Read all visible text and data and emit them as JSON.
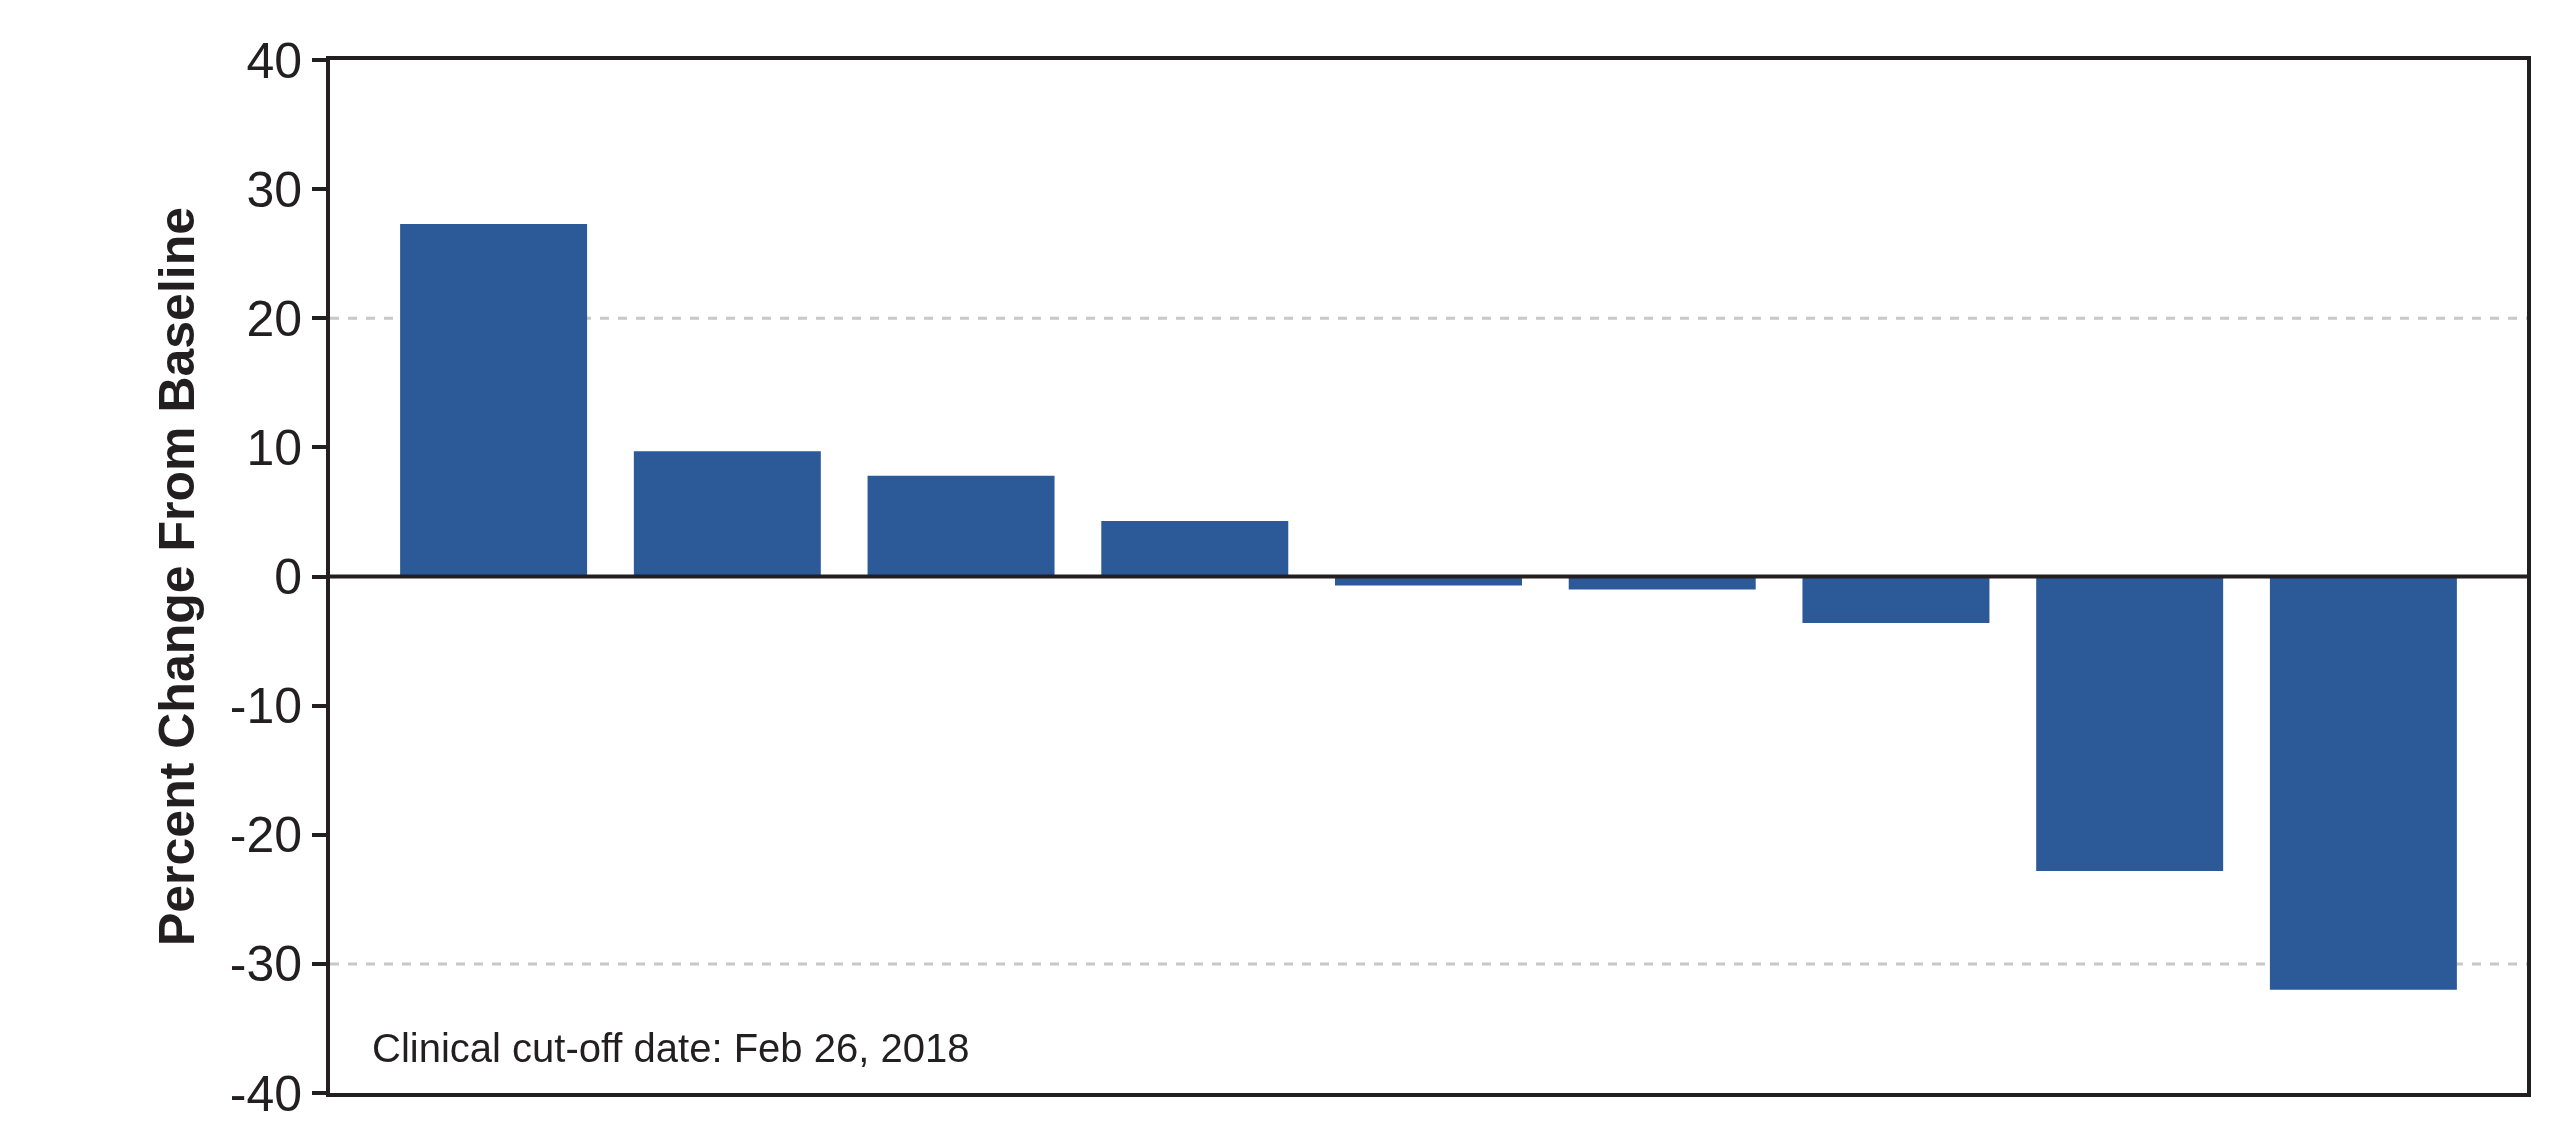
{
  "chart_data": {
    "type": "bar",
    "ylabel": "Percent Change From Baseline",
    "categories": [
      null,
      null,
      null,
      null,
      null,
      null,
      null,
      null,
      null
    ],
    "values": [
      27.3,
      9.7,
      7.8,
      4.3,
      -0.7,
      -1.0,
      -3.6,
      -22.8,
      -32.0
    ],
    "color": "#2c5a98",
    "ylim": [
      -40,
      40
    ],
    "yticks": [
      -40,
      -30,
      -20,
      -10,
      0,
      10,
      20,
      30,
      40
    ],
    "grid": false,
    "legend": false,
    "ref_lines": [
      {
        "axis": "y",
        "value": 20,
        "label": null,
        "color": "#c8c8c8",
        "line_style": "dashed"
      },
      {
        "axis": "y",
        "value": -30,
        "label": null,
        "color": "#c8c8c8",
        "line_style": "dashed"
      }
    ],
    "annotations": [
      "Clinical cut-off date: Feb 26, 2018"
    ]
  }
}
